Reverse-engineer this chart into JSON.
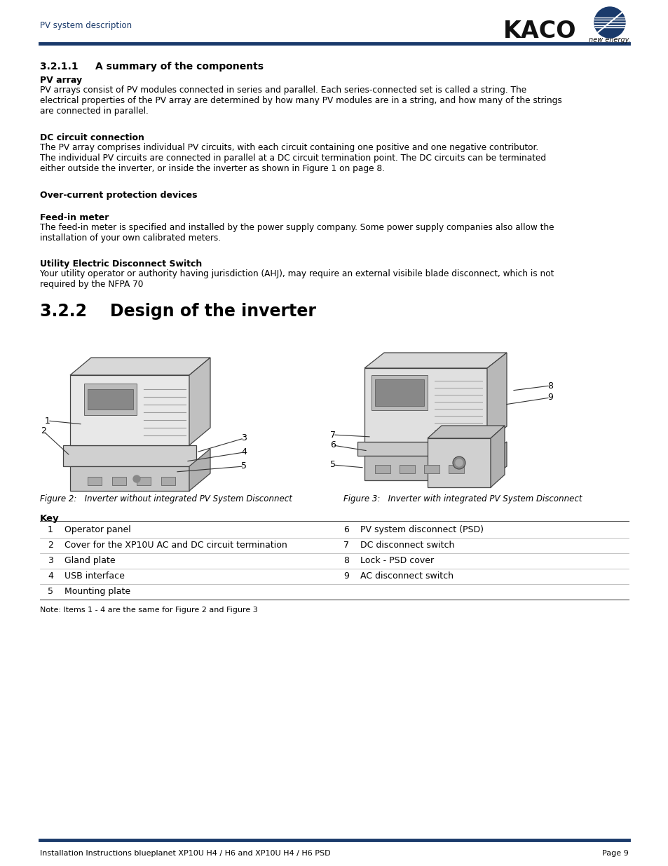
{
  "header_text": "PV system description",
  "header_color": "#1a3a6b",
  "kaco_text": "KACO",
  "new_energy_text": "new energy.",
  "header_line_color": "#1a3a6b",
  "bg_color": "#ffffff",
  "section_title": "3.2.1.1     A summary of the components",
  "subsections": [
    {
      "title": "PV array",
      "body": "PV arrays consist of PV modules connected in series and parallel. Each series-connected set is called a string. The\nelectrical properties of the PV array are determined by how many PV modules are in a string, and how many of the strings\nare connected in parallel."
    },
    {
      "title": "DC circuit connection",
      "body": "The PV array comprises individual PV circuits, with each circuit containing one positive and one negative contributor.\nThe individual PV circuits are connected in parallel at a DC circuit termination point. The DC circuits can be terminated\neither outside the inverter, or inside the inverter as shown in Figure 1 on page 8."
    },
    {
      "title": "Over-current protection devices",
      "body": ""
    },
    {
      "title": "Feed-in meter",
      "body": "The feed-in meter is specified and installed by the power supply company. Some power supply companies also allow the\ninstallation of your own calibrated meters."
    },
    {
      "title": "Utility Electric Disconnect Switch",
      "body": "Your utility operator or authority having jurisdiction (AHJ), may require an external visibile blade disconnect, which is not\nrequired by the NFPA 70"
    }
  ],
  "section2_title": "3.2.2    Design of the inverter",
  "fig2_caption": "Figure 2:   Inverter without integrated PV System Disconnect",
  "fig3_caption": "Figure 3:   Inverter with integrated PV System Disconnect",
  "key_title": "Key",
  "key_items_left": [
    [
      1,
      "Operator panel"
    ],
    [
      2,
      "Cover for the XP10U AC and DC circuit termination"
    ],
    [
      3,
      "Gland plate"
    ],
    [
      4,
      "USB interface"
    ],
    [
      5,
      "Mounting plate"
    ]
  ],
  "key_items_right": [
    [
      6,
      "PV system disconnect (PSD)"
    ],
    [
      7,
      "DC disconnect switch"
    ],
    [
      8,
      "Lock - PSD cover"
    ],
    [
      9,
      "AC disconnect switch"
    ]
  ],
  "note_text": "Note: Items 1 - 4 are the same for Figure 2 and Figure 3",
  "footer_line_color": "#1a3a6b",
  "footer_left": "Installation Instructions blueplanet XP10U H4 / H6 and XP10U H4 / H6 PSD",
  "footer_right": "Page 9"
}
